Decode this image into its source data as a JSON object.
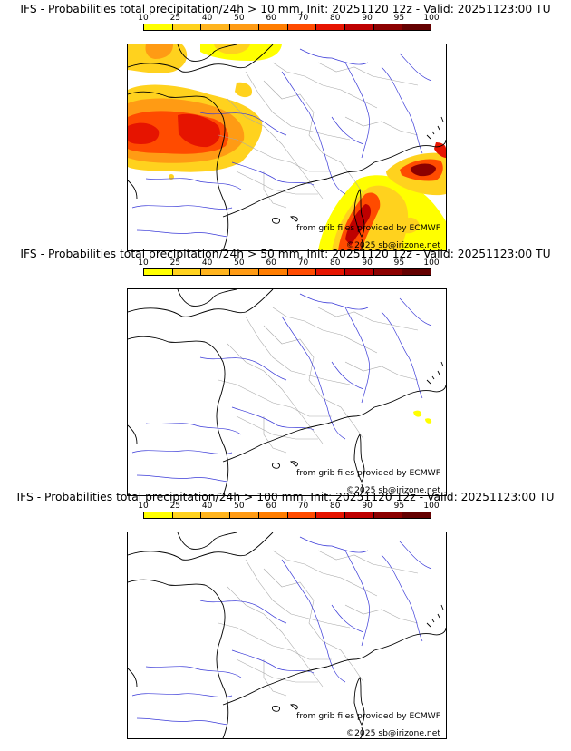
{
  "panels": [
    {
      "title": "IFS - Probabilities total precipitation/24h > 10 mm, Init: 20251120 12z - Valid: 20251123:00 TU",
      "credit_source": "from grib files provided by ECMWF",
      "credit_copyright": "©2025 sb@irizone.net"
    },
    {
      "title": "IFS - Probabilities total precipitation/24h > 50 mm, Init: 20251120 12z - Valid: 20251123:00 TU",
      "credit_source": "from grib files provided by ECMWF",
      "credit_copyright": "©2025 sb@irizone.net"
    },
    {
      "title": "IFS - Probabilities total precipitation/24h > 100 mm, Init: 20251120 12z - Valid: 20251123:00 TU",
      "credit_source": "from grib files provided by ECMWF",
      "credit_copyright": "©2025 sb@irizone.net"
    }
  ],
  "scale": {
    "labels": [
      "10",
      "25",
      "40",
      "50",
      "60",
      "70",
      "80",
      "90",
      "95",
      "100"
    ],
    "colors": [
      "#ffff00",
      "#ffd21e",
      "#ffb41e",
      "#ff9b14",
      "#ff7d00",
      "#ff4b00",
      "#e61400",
      "#be0000",
      "#8c0000",
      "#640000"
    ]
  },
  "colors": {
    "coast": "#000000",
    "rivers": "#3b3bd8",
    "borders": "#aaaaaa"
  }
}
